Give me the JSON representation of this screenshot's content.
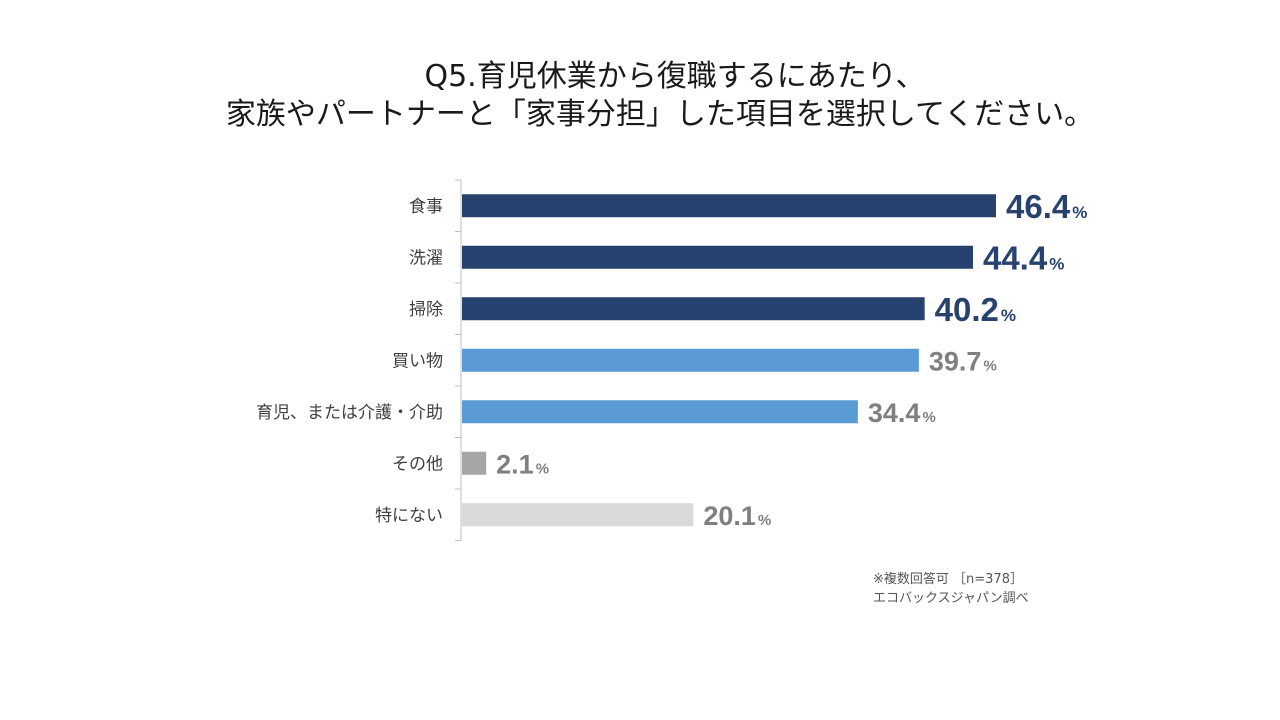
{
  "title_line1": "Q5.育児休業から復職するにあたり、",
  "title_line2": "家族やパートナーと「家事分担」した項目を選択してください。",
  "chart_data": {
    "type": "bar",
    "orientation": "horizontal",
    "categories": [
      "食事",
      "洗濯",
      "掃除",
      "買い物",
      "育児、または介護・介助",
      "その他",
      "特にない"
    ],
    "values": [
      46.4,
      44.4,
      40.2,
      39.7,
      34.4,
      2.1,
      20.1
    ],
    "value_labels": [
      "46.4",
      "44.4",
      "40.2",
      "39.7",
      "34.4",
      "2.1",
      "20.1"
    ],
    "unit": "%",
    "bar_colors": [
      "#27426f",
      "#27426f",
      "#27426f",
      "#5b9bd5",
      "#5b9bd5",
      "#a6a6a6",
      "#d9d9d9"
    ],
    "label_colors": [
      "#27426f",
      "#27426f",
      "#27426f",
      "#7f7f7f",
      "#7f7f7f",
      "#7f7f7f",
      "#7f7f7f"
    ],
    "highlight_top": 3,
    "xlim": [
      0,
      50
    ]
  },
  "footnote_line1": "※複数回答可 ［n=378］",
  "footnote_line2": "エコバックスジャパン調べ"
}
